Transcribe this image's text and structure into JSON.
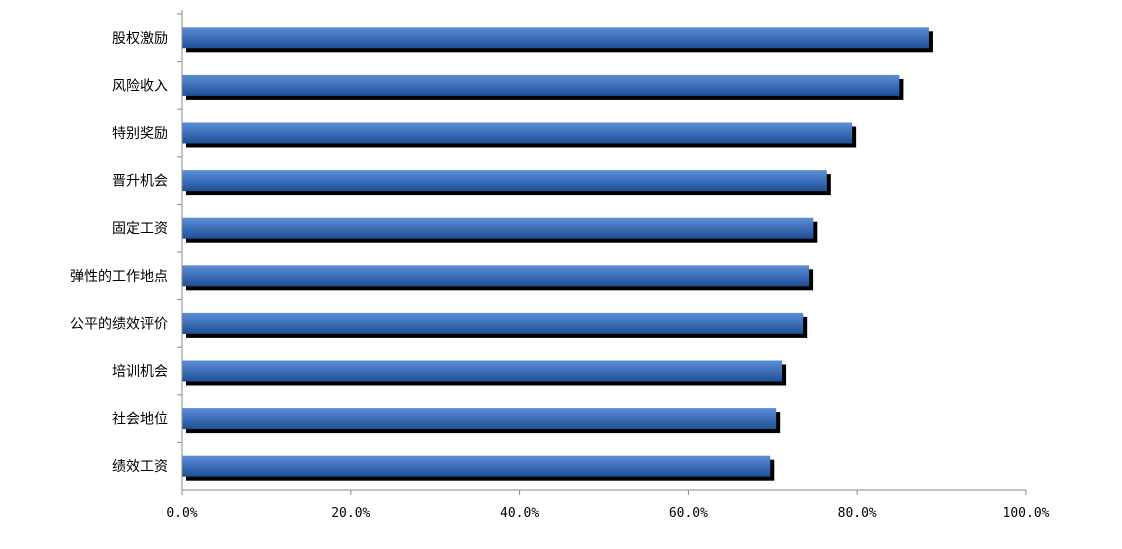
{
  "chart_data": {
    "type": "bar",
    "orientation": "horizontal",
    "title": "",
    "xlabel": "",
    "ylabel": "",
    "categories": [
      "股权激励",
      "风险收入",
      "特别奖励",
      "晋升机会",
      "固定工资",
      "弹性的工作地点",
      "公平的绩效评价",
      "培训机会",
      "社会地位",
      "绩效工资"
    ],
    "values": [
      88.5,
      85.0,
      79.4,
      76.4,
      74.8,
      74.3,
      73.6,
      71.1,
      70.4,
      69.7
    ],
    "unit": "%",
    "xlim": [
      0,
      100
    ],
    "xticks": [
      0,
      20,
      40,
      60,
      80,
      100
    ],
    "xtick_labels": [
      "0.0%",
      "20.0%",
      "40.0%",
      "60.0%",
      "80.0%",
      "100.0%"
    ],
    "grid": false,
    "legend": "none",
    "colors": {
      "bar_light": "#5b8ed6",
      "bar": "#3a6cb5",
      "bar_dark": "#1f4f94",
      "shadow": "#000000",
      "axis": "#888888"
    }
  }
}
